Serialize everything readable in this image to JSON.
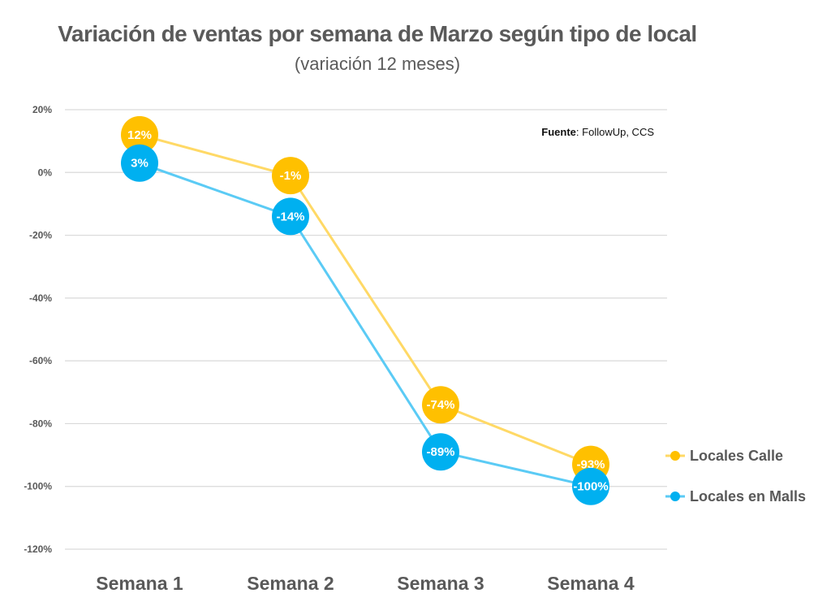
{
  "chart_data": {
    "type": "line",
    "title": "Variación de ventas por semana de Marzo según tipo de local",
    "subtitle": "(variación 12 meses)",
    "source_label": "Fuente",
    "source_text": ": FollowUp, CCS",
    "categories": [
      "Semana 1",
      "Semana 2",
      "Semana 3",
      "Semana 4"
    ],
    "ylim": [
      -120,
      20
    ],
    "yticks": [
      20,
      0,
      -20,
      -40,
      -60,
      -80,
      -100,
      -120
    ],
    "ytick_labels": [
      "20%",
      "0%",
      "-20%",
      "-40%",
      "-60%",
      "-80%",
      "-100%",
      "-120%"
    ],
    "grid": true,
    "legend_position": "right",
    "series": [
      {
        "name": "Locales Calle",
        "color": "#FFC000",
        "line_color": "#FFD966",
        "values": [
          12,
          -1,
          -74,
          -93
        ],
        "labels": [
          "12%",
          "-1%",
          "-74%",
          "-93%"
        ]
      },
      {
        "name": "Locales en Malls",
        "color": "#00B0F0",
        "line_color": "#5BCBF5",
        "values": [
          3,
          -14,
          -89,
          -100
        ],
        "labels": [
          "3%",
          "-14%",
          "-89%",
          "-100%"
        ]
      }
    ]
  }
}
